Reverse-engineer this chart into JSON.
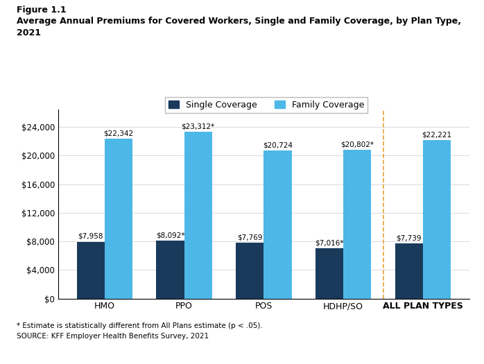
{
  "categories": [
    "HMO",
    "PPO",
    "POS",
    "HDHP/SO",
    "ALL PLAN TYPES"
  ],
  "single_values": [
    7958,
    8092,
    7769,
    7016,
    7739
  ],
  "family_values": [
    22342,
    23312,
    20724,
    20802,
    22221
  ],
  "single_labels": [
    "$7,958",
    "$8,092*",
    "$7,769",
    "$7,016*",
    "$7,739"
  ],
  "family_labels": [
    "$22,342",
    "$23,312*",
    "$20,724",
    "$20,802*",
    "$22,221"
  ],
  "single_color": "#1a3a5c",
  "family_color": "#4db8e8",
  "title_line1": "Figure 1.1",
  "title_line2": "Average Annual Premiums for Covered Workers, Single and Family Coverage, by Plan Type,",
  "title_line3": "2021",
  "legend_single": "Single Coverage",
  "legend_family": "Family Coverage",
  "footnote1": "* Estimate is statistically different from All Plans estimate (p < .05).",
  "footnote2": "SOURCE: KFF Employer Health Benefits Survey, 2021",
  "ylim": [
    0,
    26500
  ],
  "yticks": [
    0,
    4000,
    8000,
    12000,
    16000,
    20000,
    24000
  ],
  "bar_width": 0.35,
  "dashed_line_color": "#e8a030",
  "background_color": "#ffffff"
}
